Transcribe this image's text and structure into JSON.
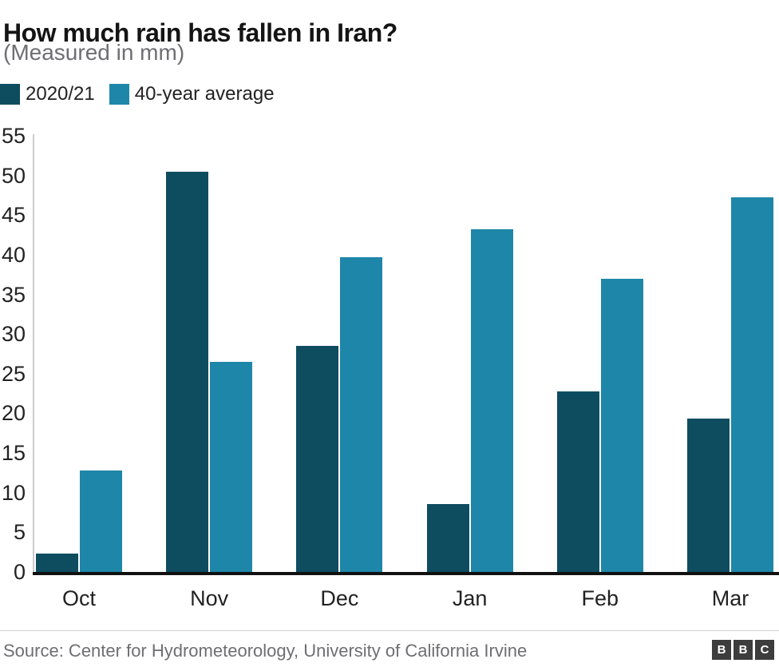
{
  "chart_data": {
    "type": "bar",
    "title": "How much rain has fallen in Iran?",
    "subtitle": "(Measured in mm)",
    "categories": [
      "Oct",
      "Nov",
      "Dec",
      "Jan",
      "Feb",
      "Mar"
    ],
    "series": [
      {
        "name": "2020/21",
        "color": "#0e4c60",
        "values": [
          2.3,
          50.5,
          28.5,
          8.6,
          22.8,
          19.3
        ]
      },
      {
        "name": "40-year average",
        "color": "#1e86a8",
        "values": [
          12.8,
          26.5,
          39.7,
          43.2,
          37.0,
          47.2
        ]
      }
    ],
    "xlabel": "",
    "ylabel": "",
    "ylim": [
      0,
      55
    ],
    "yticks": [
      0,
      5,
      10,
      15,
      20,
      25,
      30,
      35,
      40,
      45,
      50,
      55
    ],
    "grid": false,
    "legend_position": "top-left"
  },
  "footer": {
    "source": "Source: Center for Hydrometeorology, University of California Irvine",
    "logo_letters": [
      "B",
      "B",
      "C"
    ]
  },
  "colors": {
    "series_dark": "#0e4c60",
    "series_light": "#1e86a8",
    "axis_line": "#111111",
    "y_axis_line": "#cccccc",
    "text_primary": "#222222",
    "text_muted": "#6e6e73"
  }
}
